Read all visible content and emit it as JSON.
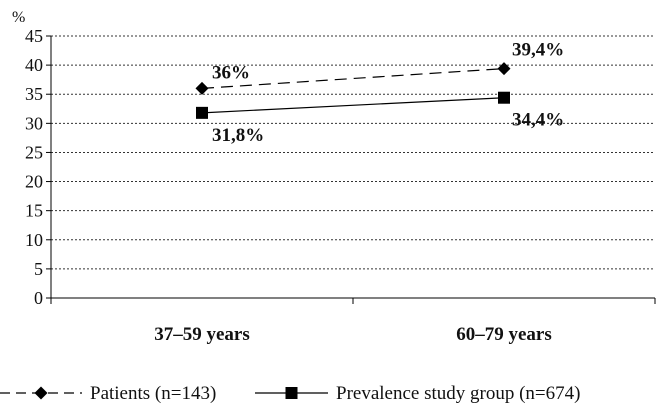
{
  "chart_data": {
    "type": "line",
    "categories": [
      "37–59 years",
      "60–79 years"
    ],
    "ylabel": "%",
    "ylim": [
      0,
      45
    ],
    "yticks": [
      0,
      5,
      10,
      15,
      20,
      25,
      30,
      35,
      40,
      45
    ],
    "grid": true,
    "legend_position": "bottom",
    "series": [
      {
        "name": "Patients (n=143)",
        "values": [
          36,
          39.4
        ],
        "labels": [
          "36%",
          "39,4%"
        ],
        "line_style": "dashed",
        "marker": "diamond",
        "color": "#000000"
      },
      {
        "name": "Prevalence study group (n=674)",
        "values": [
          31.8,
          34.4
        ],
        "labels": [
          "31,8%",
          "34,4%"
        ],
        "line_style": "solid",
        "marker": "square",
        "color": "#000000"
      }
    ]
  }
}
